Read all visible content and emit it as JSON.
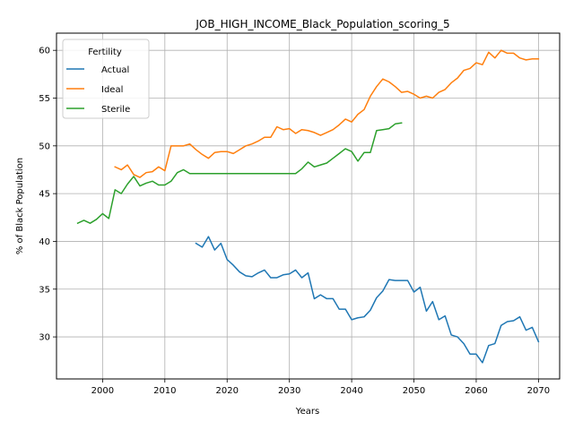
{
  "chart_data": {
    "type": "line",
    "title": "JOB_HIGH_INCOME_Black_Population_scoring_5",
    "xlabel": "Years",
    "ylabel": "% of Black Population",
    "xlim": [
      1992.6,
      2073.4
    ],
    "ylim": [
      25.6,
      61.8
    ],
    "xticks": [
      2000,
      2010,
      2020,
      2030,
      2040,
      2050,
      2060,
      2070
    ],
    "yticks": [
      30,
      35,
      40,
      45,
      50,
      55,
      60
    ],
    "grid": true,
    "legend": {
      "title": "Fertility",
      "placement": "upper left"
    },
    "series": [
      {
        "name": "Actual",
        "color": "#1f77b4",
        "x": [
          2015,
          2016,
          2017,
          2018,
          2019,
          2020,
          2021,
          2022,
          2023,
          2024,
          2025,
          2026,
          2027,
          2028,
          2029,
          2030,
          2031,
          2032,
          2033,
          2034,
          2035,
          2036,
          2037,
          2038,
          2039,
          2040,
          2041,
          2042,
          2043,
          2044,
          2045,
          2046,
          2047,
          2048,
          2049,
          2050,
          2051,
          2052,
          2053,
          2054,
          2055,
          2056,
          2057,
          2058,
          2059,
          2060,
          2061,
          2062,
          2063,
          2064,
          2065,
          2066,
          2067,
          2068,
          2069,
          2070
        ],
        "values": [
          39.8,
          39.4,
          40.5,
          39.1,
          39.8,
          38.1,
          37.5,
          36.8,
          36.4,
          36.3,
          36.7,
          37.0,
          36.2,
          36.2,
          36.5,
          36.6,
          37.0,
          36.2,
          36.7,
          34.0,
          34.4,
          34.0,
          34.0,
          32.9,
          32.9,
          31.8,
          32.0,
          32.1,
          32.8,
          34.1,
          34.8,
          36.0,
          35.9,
          35.9,
          35.9,
          34.7,
          35.2,
          32.7,
          33.7,
          31.8,
          32.2,
          30.2,
          30.0,
          29.3,
          28.2,
          28.2,
          27.3,
          29.1,
          29.3,
          31.2,
          31.6,
          31.7,
          32.1,
          30.7,
          31.0,
          29.5
        ]
      },
      {
        "name": "Ideal",
        "color": "#ff7f0e",
        "x": [
          2002,
          2003,
          2004,
          2005,
          2006,
          2007,
          2008,
          2009,
          2010,
          2011,
          2012,
          2013,
          2014,
          2015,
          2016,
          2017,
          2018,
          2019,
          2020,
          2021,
          2022,
          2023,
          2024,
          2025,
          2026,
          2027,
          2028,
          2029,
          2030,
          2031,
          2032,
          2033,
          2034,
          2035,
          2036,
          2037,
          2038,
          2039,
          2040,
          2041,
          2042,
          2043,
          2044,
          2045,
          2046,
          2047,
          2048,
          2049,
          2050,
          2051,
          2052,
          2053,
          2054,
          2055,
          2056,
          2057,
          2058,
          2059,
          2060,
          2061,
          2062,
          2063,
          2064,
          2065,
          2066,
          2067,
          2068,
          2069,
          2070
        ],
        "values": [
          47.8,
          47.5,
          48.0,
          47.0,
          46.7,
          47.2,
          47.3,
          47.8,
          47.4,
          50.0,
          50.0,
          50.0,
          50.2,
          49.6,
          49.1,
          48.7,
          49.3,
          49.4,
          49.4,
          49.2,
          49.6,
          50.0,
          50.2,
          50.5,
          50.9,
          50.9,
          52.0,
          51.7,
          51.8,
          51.3,
          51.7,
          51.6,
          51.4,
          51.1,
          51.4,
          51.7,
          52.2,
          52.8,
          52.5,
          53.3,
          53.8,
          55.2,
          56.2,
          57.0,
          56.7,
          56.2,
          55.6,
          55.7,
          55.4,
          55.0,
          55.2,
          55.0,
          55.6,
          55.9,
          56.6,
          57.1,
          57.9,
          58.1,
          58.7,
          58.5,
          59.8,
          59.2,
          60.0,
          59.7,
          59.7,
          59.2,
          59.0,
          59.1,
          59.1
        ]
      },
      {
        "name": "Sterile",
        "color": "#2ca02c",
        "x": [
          1996,
          1997,
          1998,
          1999,
          2000,
          2001,
          2002,
          2003,
          2004,
          2005,
          2006,
          2007,
          2008,
          2009,
          2010,
          2011,
          2012,
          2013,
          2014,
          2015,
          2016,
          2017,
          2018,
          2019,
          2020,
          2021,
          2022,
          2023,
          2024,
          2025,
          2026,
          2027,
          2028,
          2029,
          2030,
          2031,
          2032,
          2033,
          2034,
          2035,
          2036,
          2037,
          2038,
          2039,
          2040,
          2041,
          2042,
          2043,
          2044,
          2045,
          2046,
          2047,
          2048
        ],
        "values": [
          41.9,
          42.2,
          41.9,
          42.3,
          42.9,
          42.4,
          45.4,
          45.0,
          46.0,
          46.8,
          45.8,
          46.1,
          46.3,
          45.9,
          45.9,
          46.3,
          47.2,
          47.5,
          47.1,
          47.1,
          47.1,
          47.1,
          47.1,
          47.1,
          47.1,
          47.1,
          47.1,
          47.1,
          47.1,
          47.1,
          47.1,
          47.1,
          47.1,
          47.1,
          47.1,
          47.1,
          47.6,
          48.3,
          47.8,
          48.0,
          48.2,
          48.7,
          49.2,
          49.7,
          49.4,
          48.4,
          49.3,
          49.3,
          51.6,
          51.7,
          51.8,
          52.3,
          52.4
        ]
      }
    ]
  }
}
